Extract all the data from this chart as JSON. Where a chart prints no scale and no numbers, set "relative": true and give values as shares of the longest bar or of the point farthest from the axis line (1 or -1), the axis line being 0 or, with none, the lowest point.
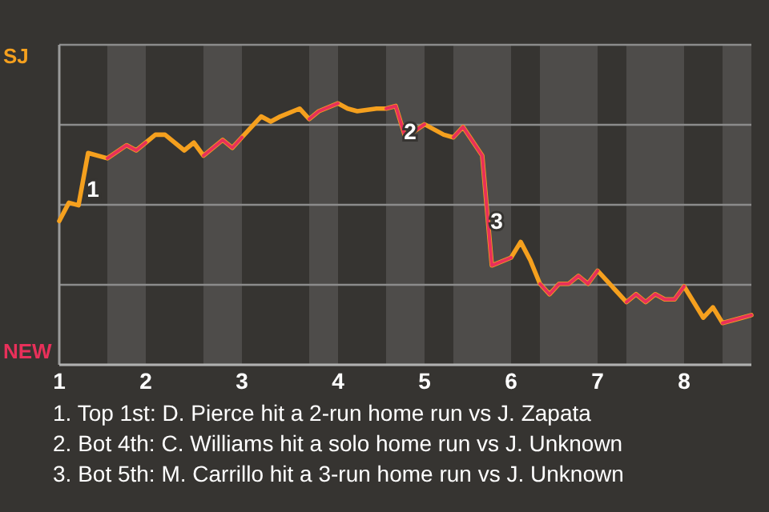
{
  "chart_data": {
    "type": "line",
    "relative": true,
    "categories": [
      "1",
      null,
      null,
      null,
      null,
      null,
      null,
      null,
      null,
      "2",
      null,
      null,
      null,
      null,
      null,
      null,
      null,
      null,
      null,
      "3",
      null,
      null,
      null,
      null,
      null,
      null,
      null,
      null,
      null,
      "4",
      null,
      null,
      null,
      null,
      null,
      null,
      null,
      null,
      "5",
      null,
      null,
      null,
      null,
      null,
      null,
      null,
      null,
      "6",
      null,
      null,
      null,
      null,
      null,
      null,
      null,
      null,
      "7",
      null,
      null,
      null,
      null,
      null,
      null,
      null,
      null,
      "8",
      null,
      null,
      null,
      null,
      null,
      null,
      null
    ],
    "series": [
      {
        "name": "SJ",
        "color": "#f5a01e",
        "values": [
          0.55,
          0.62,
          0.61,
          0.81,
          null,
          0.79,
          null,
          0.84,
          0.82,
          0.85,
          0.88,
          0.88,
          null,
          0.82,
          0.85,
          0.8,
          null,
          0.86,
          0.83,
          0.87,
          0.91,
          0.95,
          0.93,
          0.95,
          null,
          0.98,
          0.94,
          0.97,
          null,
          1,
          0.98,
          0.97,
          null,
          0.98,
          0.98,
          0.99,
          0.87,
          null,
          0.92,
          null,
          0.88,
          0.87,
          0.91,
          null,
          0.8,
          0.38,
          null,
          0.41,
          0.47,
          0.4,
          0.31,
          0.27,
          0.31,
          0.31,
          0.34,
          0.31,
          0.36,
          null,
          0.28,
          0.24,
          0.27,
          0.24,
          0.27,
          0.25,
          0.25,
          0.3,
          null,
          0.18,
          0.22,
          0.16,
          null,
          0.18,
          0.19
        ]
      },
      {
        "name": "NEW",
        "color": "#e8305a",
        "values": [
          null,
          null,
          null,
          null,
          null,
          0.79,
          null,
          0.84,
          0.82,
          0.85,
          null,
          null,
          null,
          null,
          null,
          0.8,
          null,
          0.86,
          0.83,
          0.87,
          null,
          null,
          null,
          null,
          null,
          null,
          0.94,
          0.97,
          null,
          1,
          null,
          null,
          null,
          null,
          0.98,
          0.99,
          0.87,
          null,
          0.92,
          null,
          null,
          0.87,
          0.91,
          null,
          0.8,
          0.38,
          null,
          0.41,
          null,
          null,
          0.31,
          0.27,
          0.31,
          0.31,
          0.34,
          0.31,
          0.36,
          null,
          null,
          0.24,
          0.27,
          0.24,
          0.27,
          0.25,
          0.25,
          0.3,
          null,
          null,
          null,
          0.16,
          null,
          0.18,
          0.19
        ]
      }
    ],
    "grid": "y",
    "annotations": [
      "1",
      "2",
      "3",
      "1. Top 1st: D. Pierce hit a 2-run home run vs J. Zapata",
      "2. Bot 4th: C. Williams hit a solo home run vs J. Unknown",
      "3. Bot 5th: M. Carrillo hit a 3-run home run vs J. Unknown"
    ]
  }
}
